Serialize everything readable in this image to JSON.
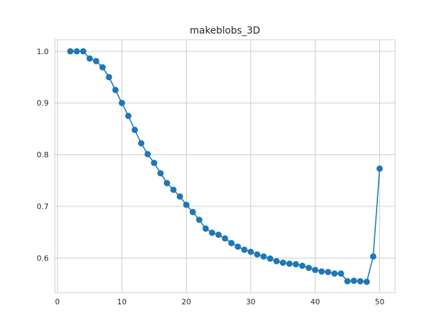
{
  "chart_data": {
    "type": "line",
    "title": "makeblobs_3D",
    "xlabel": "",
    "ylabel": "",
    "xlim": [
      -0.4,
      52.4
    ],
    "ylim": [
      0.533,
      1.0223
    ],
    "x_ticks": [
      0,
      10,
      20,
      30,
      40,
      50
    ],
    "y_ticks": [
      0.6,
      0.7,
      0.8,
      0.9,
      1.0
    ],
    "x_tick_labels": [
      "0",
      "10",
      "20",
      "30",
      "40",
      "50"
    ],
    "y_tick_labels": [
      "0.6",
      "0.7",
      "0.8",
      "0.9",
      "1.0"
    ],
    "grid": true,
    "legend": "none",
    "series": [
      {
        "color": "#1f77b4",
        "marker": "circle",
        "x": [
          2,
          3,
          4,
          5,
          6,
          7,
          8,
          9,
          10,
          11,
          12,
          13,
          14,
          15,
          16,
          17,
          18,
          19,
          20,
          21,
          22,
          23,
          24,
          25,
          26,
          27,
          28,
          29,
          30,
          31,
          32,
          33,
          34,
          35,
          36,
          37,
          38,
          39,
          40,
          41,
          42,
          43,
          44,
          45,
          46,
          47,
          48,
          49,
          50
        ],
        "values": [
          1.0,
          1.0,
          1.0,
          0.986,
          0.981,
          0.969,
          0.95,
          0.925,
          0.9,
          0.875,
          0.848,
          0.822,
          0.801,
          0.784,
          0.764,
          0.745,
          0.732,
          0.719,
          0.703,
          0.689,
          0.674,
          0.657,
          0.649,
          0.645,
          0.638,
          0.629,
          0.622,
          0.616,
          0.612,
          0.607,
          0.603,
          0.599,
          0.594,
          0.591,
          0.589,
          0.588,
          0.585,
          0.581,
          0.577,
          0.574,
          0.573,
          0.57,
          0.57,
          0.555,
          0.556,
          0.555,
          0.554,
          0.603,
          0.773
        ]
      }
    ]
  }
}
